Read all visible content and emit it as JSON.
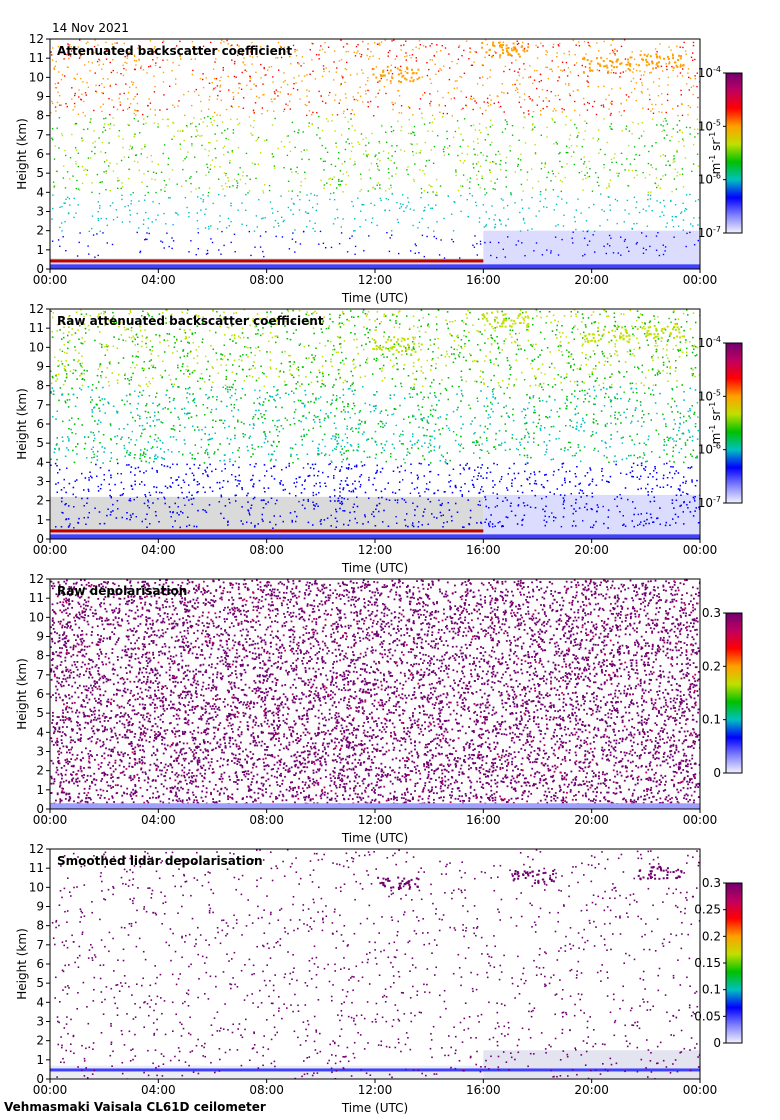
{
  "date": "14 Nov 2021",
  "footer": "Vehmasmaki Vaisala CL61D ceilometer",
  "chart_data": [
    {
      "type": "heatmap",
      "title": "Attenuated backscatter coefficient",
      "xlabel": "Time (UTC)",
      "ylabel": "Height (km)",
      "x_ticks": [
        "00:00",
        "04:00",
        "08:00",
        "12:00",
        "16:00",
        "20:00",
        "00:00"
      ],
      "y_ticks": [
        0,
        1,
        2,
        3,
        4,
        5,
        6,
        7,
        8,
        9,
        10,
        11,
        12
      ],
      "ylim": [
        0,
        12
      ],
      "colorbar": {
        "scale": "log",
        "unit_base": "m",
        "unit_exp1": "-1",
        "unit_mid": "sr",
        "unit_exp2": "-1",
        "ticks": [
          {
            "base": "10",
            "exp": "-4"
          },
          {
            "base": "10",
            "exp": "-5"
          },
          {
            "base": "10",
            "exp": "-6"
          },
          {
            "base": "10",
            "exp": "-7"
          }
        ]
      },
      "colormap": [
        "#f3f3ff",
        "#8080ff",
        "#0000ff",
        "#00c0c0",
        "#00c000",
        "#c0e000",
        "#ffa000",
        "#ff0000",
        "#c00060",
        "#700070"
      ]
    },
    {
      "type": "heatmap",
      "title": "Raw attenuated backscatter coefficient",
      "xlabel": "Time (UTC)",
      "ylabel": "Height (km)",
      "x_ticks": [
        "00:00",
        "04:00",
        "08:00",
        "12:00",
        "16:00",
        "20:00",
        "00:00"
      ],
      "y_ticks": [
        0,
        1,
        2,
        3,
        4,
        5,
        6,
        7,
        8,
        9,
        10,
        11,
        12
      ],
      "ylim": [
        0,
        12
      ],
      "colorbar": {
        "scale": "log",
        "unit_base": "m",
        "unit_exp1": "-1",
        "unit_mid": "sr",
        "unit_exp2": "-1",
        "ticks": [
          {
            "base": "10",
            "exp": "-4"
          },
          {
            "base": "10",
            "exp": "-5"
          },
          {
            "base": "10",
            "exp": "-6"
          },
          {
            "base": "10",
            "exp": "-7"
          }
        ]
      },
      "colormap": [
        "#f3f3ff",
        "#8080ff",
        "#0000ff",
        "#00c0c0",
        "#00c000",
        "#c0e000",
        "#ffa000",
        "#ff0000",
        "#c00060",
        "#700070"
      ]
    },
    {
      "type": "heatmap",
      "title": "Raw depolarisation",
      "xlabel": "Time (UTC)",
      "ylabel": "Height (km)",
      "x_ticks": [
        "00:00",
        "04:00",
        "08:00",
        "12:00",
        "16:00",
        "20:00",
        "00:00"
      ],
      "y_ticks": [
        0,
        1,
        2,
        3,
        4,
        5,
        6,
        7,
        8,
        9,
        10,
        11,
        12
      ],
      "ylim": [
        0,
        12
      ],
      "colorbar": {
        "scale": "linear",
        "range": [
          0,
          0.3
        ],
        "ticks": [
          "0.3",
          "0.2",
          "0.1",
          "0"
        ]
      },
      "colormap": [
        "#f3f3ff",
        "#8080ff",
        "#0000ff",
        "#00c0c0",
        "#00c000",
        "#c0e000",
        "#ffa000",
        "#ff0000",
        "#c00060",
        "#700070"
      ]
    },
    {
      "type": "heatmap",
      "title": "Smoothed lidar depolarisation",
      "xlabel": "Time (UTC)",
      "ylabel": "Height (km)",
      "x_ticks": [
        "00:00",
        "04:00",
        "08:00",
        "12:00",
        "16:00",
        "20:00",
        "00:00"
      ],
      "y_ticks": [
        0,
        1,
        2,
        3,
        4,
        5,
        6,
        7,
        8,
        9,
        10,
        11,
        12
      ],
      "ylim": [
        0,
        12
      ],
      "colorbar": {
        "scale": "linear",
        "range": [
          0,
          0.3
        ],
        "ticks": [
          "0.3",
          "0.25",
          "0.2",
          "0.15",
          "0.1",
          "0.05",
          "0"
        ]
      },
      "colormap": [
        "#f3f3ff",
        "#8080ff",
        "#0000ff",
        "#00c0c0",
        "#00c000",
        "#c0e000",
        "#ffa000",
        "#ff0000",
        "#c00060",
        "#700070"
      ]
    }
  ]
}
